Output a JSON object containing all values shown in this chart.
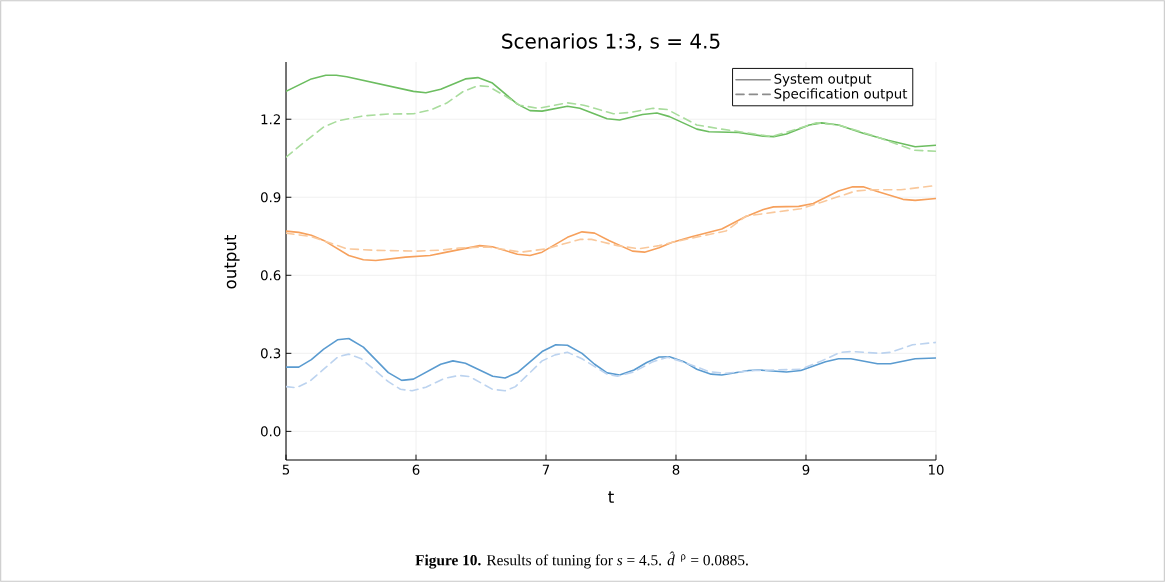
{
  "chart_data": {
    "type": "line",
    "title": "Scenarios 1:3, s = 4.5",
    "xlabel": "t",
    "ylabel": "output",
    "annotations": [
      "**Figure 10.** Results of tuning for *s* = 4.5. *d̂*$^{ρ}$ = 0.0885."
    ],
    "xlim": [
      5,
      10
    ],
    "xticks": [
      5,
      6,
      7,
      8,
      9,
      10
    ],
    "ylim": [
      -0.11,
      1.42
    ],
    "yticks": [
      {
        "value": 0,
        "label": "0.0"
      },
      {
        "value": 0.3,
        "label": "0.3"
      },
      {
        "value": 0.6,
        "label": "0.6"
      },
      {
        "value": 0.9,
        "label": "0.9"
      },
      {
        "value": 1.2,
        "label": "1.2"
      }
    ],
    "grid": true,
    "legend": "top right",
    "series": [
      {
        "color": "#5a9bd0",
        "line_style": "solid",
        "x": [
          5,
          5.098,
          5.195,
          5.29,
          5.396,
          5.483,
          5.595,
          5.787,
          5.89,
          5.98,
          6.19,
          6.284,
          6.38,
          6.59,
          6.685,
          6.78,
          6.97,
          7.075,
          7.165,
          7.277,
          7.374,
          7.47,
          7.566,
          7.677,
          7.775,
          7.87,
          7.95,
          8.06,
          8.16,
          8.27,
          8.352,
          8.56,
          8.64,
          8.85,
          8.96,
          9.15,
          9.25,
          9.345,
          9.55,
          9.65,
          9.84,
          10
        ],
        "values": [
          0.247,
          0.247,
          0.276,
          0.316,
          0.352,
          0.357,
          0.324,
          0.226,
          0.196,
          0.201,
          0.258,
          0.271,
          0.262,
          0.212,
          0.205,
          0.226,
          0.307,
          0.333,
          0.331,
          0.3,
          0.258,
          0.225,
          0.217,
          0.236,
          0.265,
          0.286,
          0.287,
          0.268,
          0.239,
          0.22,
          0.217,
          0.234,
          0.236,
          0.228,
          0.234,
          0.268,
          0.279,
          0.279,
          0.26,
          0.26,
          0.279,
          0.282
        ]
      },
      {
        "color": "#bcd3ef",
        "line_style": "dashed",
        "x": [
          5,
          5.08,
          5.178,
          5.29,
          5.402,
          5.483,
          5.58,
          5.787,
          5.88,
          5.97,
          6.076,
          6.22,
          6.332,
          6.41,
          6.588,
          6.685,
          6.765,
          6.97,
          7.07,
          7.165,
          7.277,
          7.47,
          7.55,
          7.677,
          7.823,
          7.935,
          8.06,
          8.254,
          8.37,
          8.61,
          8.96,
          9.12,
          9.265,
          9.345,
          9.57,
          9.65,
          9.82,
          10
        ],
        "values": [
          0.172,
          0.168,
          0.191,
          0.239,
          0.287,
          0.297,
          0.279,
          0.191,
          0.162,
          0.156,
          0.17,
          0.204,
          0.215,
          0.211,
          0.162,
          0.156,
          0.172,
          0.271,
          0.294,
          0.304,
          0.279,
          0.22,
          0.212,
          0.229,
          0.268,
          0.285,
          0.266,
          0.23,
          0.223,
          0.234,
          0.239,
          0.271,
          0.304,
          0.307,
          0.3,
          0.304,
          0.333,
          0.342
        ]
      },
      {
        "color": "#f6a05c",
        "line_style": "solid",
        "x": [
          5,
          5.098,
          5.195,
          5.29,
          5.483,
          5.595,
          5.69,
          5.92,
          6.108,
          6.236,
          6.49,
          6.588,
          6.78,
          6.877,
          6.97,
          7.165,
          7.277,
          7.374,
          7.484,
          7.665,
          7.758,
          7.87,
          7.967,
          8.127,
          8.352,
          8.53,
          8.672,
          8.75,
          8.944,
          9.056,
          9.25,
          9.36,
          9.44,
          9.537,
          9.746,
          9.84,
          10
        ],
        "values": [
          0.77,
          0.765,
          0.754,
          0.734,
          0.676,
          0.66,
          0.657,
          0.67,
          0.676,
          0.689,
          0.714,
          0.71,
          0.681,
          0.676,
          0.689,
          0.746,
          0.767,
          0.762,
          0.734,
          0.693,
          0.689,
          0.706,
          0.726,
          0.749,
          0.778,
          0.824,
          0.853,
          0.863,
          0.865,
          0.876,
          0.924,
          0.94,
          0.94,
          0.924,
          0.892,
          0.888,
          0.895
        ]
      },
      {
        "color": "#f9c89c",
        "line_style": "dashed",
        "x": [
          5,
          5.195,
          5.467,
          5.69,
          6.01,
          6.2,
          6.33,
          6.556,
          6.81,
          7.005,
          7.26,
          7.35,
          7.55,
          7.71,
          7.87,
          8.0,
          8.254,
          8.383,
          8.54,
          8.96,
          9.12,
          9.38,
          9.51,
          9.73,
          10
        ],
        "values": [
          0.762,
          0.749,
          0.702,
          0.696,
          0.693,
          0.697,
          0.705,
          0.709,
          0.689,
          0.702,
          0.738,
          0.738,
          0.714,
          0.702,
          0.714,
          0.73,
          0.757,
          0.77,
          0.828,
          0.856,
          0.881,
          0.924,
          0.929,
          0.929,
          0.945
        ]
      },
      {
        "color": "#6cbd60",
        "line_style": "solid",
        "x": [
          5,
          5.195,
          5.306,
          5.387,
          5.467,
          5.98,
          6.076,
          6.19,
          6.38,
          6.476,
          6.588,
          6.78,
          6.877,
          6.97,
          7.165,
          7.26,
          7.47,
          7.566,
          7.742,
          7.853,
          7.95,
          8.16,
          8.254,
          8.48,
          8.672,
          8.752,
          8.85,
          9.025,
          9.12,
          9.25,
          9.44,
          9.63,
          9.84,
          10
        ],
        "values": [
          1.307,
          1.355,
          1.369,
          1.369,
          1.363,
          1.307,
          1.302,
          1.315,
          1.355,
          1.36,
          1.339,
          1.258,
          1.233,
          1.231,
          1.25,
          1.242,
          1.202,
          1.197,
          1.218,
          1.224,
          1.21,
          1.162,
          1.152,
          1.149,
          1.135,
          1.133,
          1.143,
          1.178,
          1.186,
          1.178,
          1.146,
          1.119,
          1.094,
          1.1
        ]
      },
      {
        "color": "#a8dc9c",
        "line_style": "dashed",
        "x": [
          5,
          5.146,
          5.29,
          5.402,
          5.595,
          5.787,
          5.98,
          6.108,
          6.236,
          6.364,
          6.476,
          6.556,
          6.685,
          6.797,
          6.94,
          7.165,
          7.29,
          7.518,
          7.646,
          7.823,
          7.935,
          8.16,
          8.352,
          8.608,
          8.736,
          8.928,
          9.08,
          9.25,
          9.51,
          9.83,
          10
        ],
        "values": [
          1.054,
          1.114,
          1.17,
          1.194,
          1.213,
          1.22,
          1.221,
          1.235,
          1.262,
          1.307,
          1.329,
          1.326,
          1.29,
          1.254,
          1.242,
          1.263,
          1.254,
          1.221,
          1.226,
          1.242,
          1.237,
          1.178,
          1.162,
          1.143,
          1.133,
          1.162,
          1.186,
          1.178,
          1.138,
          1.081,
          1.077
        ]
      },
      {
        "name": "System output",
        "color": "#8c8c8c",
        "line_style": "solid"
      },
      {
        "name": "Specification output",
        "color": "#8c8c8c",
        "line_style": "dashed"
      }
    ]
  }
}
